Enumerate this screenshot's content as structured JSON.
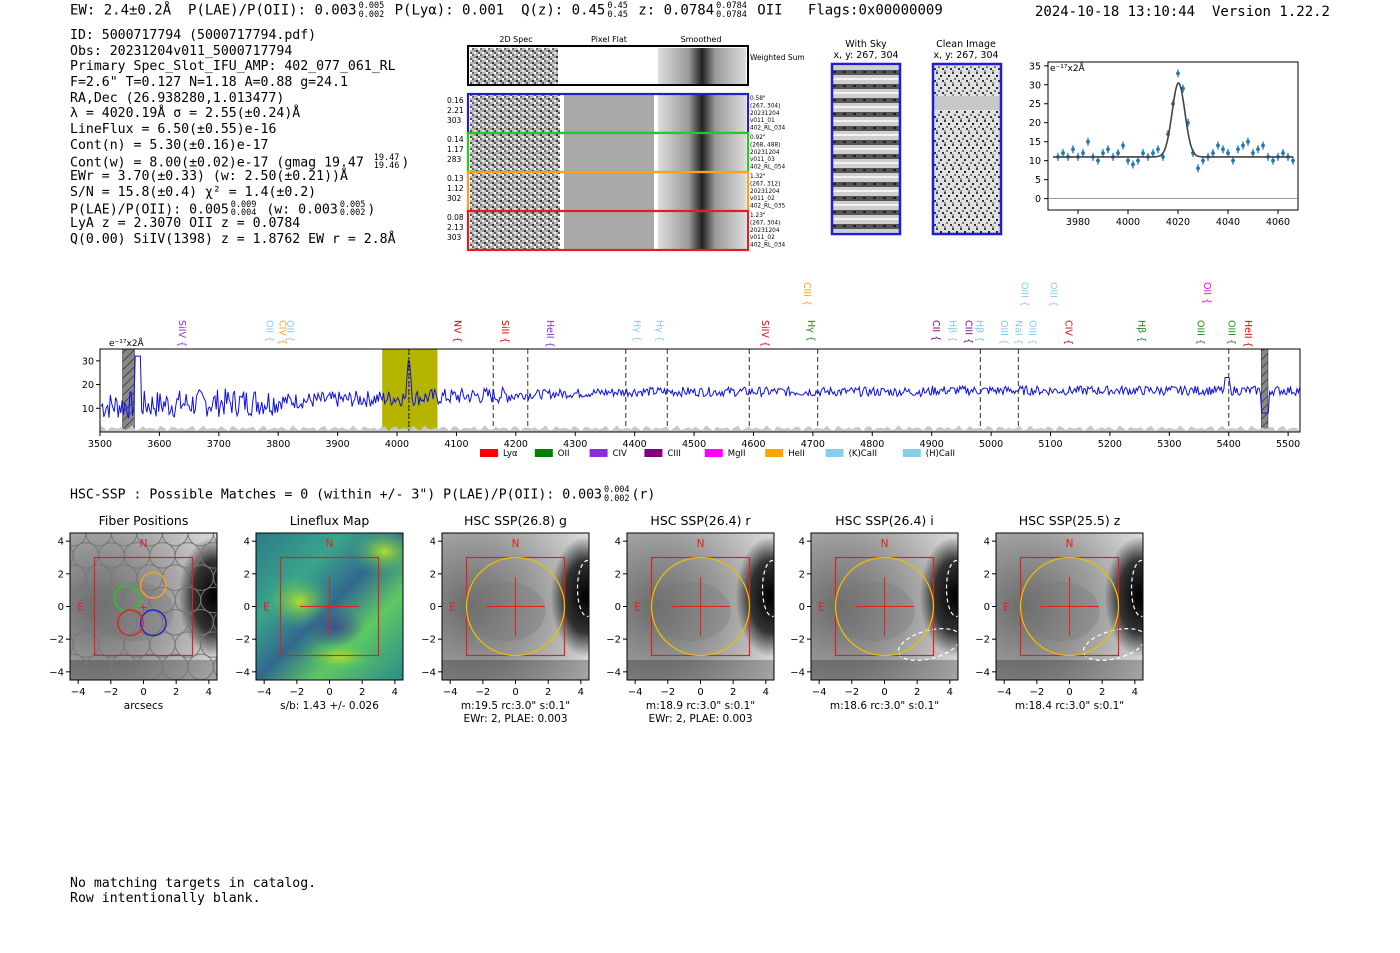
{
  "header": {
    "ew": "EW: 2.4±0.2Å",
    "plae_label": "P(LAE)/P(OII): 0.003",
    "plae_up": "0.005",
    "plae_dn": "0.002",
    "plya": "P(Lyα): 0.001",
    "qz_label": "Q(z): 0.45",
    "qz_up": "0.45",
    "qz_dn": "0.45",
    "z_label": "z: 0.0784",
    "z_up": "0.0784",
    "z_dn": "0.0784",
    "z_line": "OII",
    "flags": "Flags:0x00000009",
    "datetime": "2024-10-18 13:10:44",
    "version": "Version 1.22.2"
  },
  "info": {
    "id": "ID: 5000717794 (5000717794.pdf)",
    "obs": "Obs: 20231204v011_5000717794",
    "primary": "Primary Spec_Slot_IFU_AMP: 402_077_061_RL",
    "fiber": "F=2.6\"  T=0.127  N=1.18  A=0.88  g=24.1",
    "radec": "RA,Dec (26.938280,1.013477)",
    "lambda": "λ = 4020.19Å  σ = 2.55(±0.24)Å",
    "lineflux": "LineFlux = 6.50(±0.55)e-16",
    "contn": "Cont(n) = 5.30(±0.16)e-17",
    "contw": "Cont(w) = 8.00(±0.02)e-17 (gmag 19.47",
    "contw_up": "19.47",
    "contw_dn": "19.46",
    "contw_end": ")",
    "ewr": "EWr = 3.70(±0.33) (w: 2.50(±0.21))Å",
    "sn": "S/N = 15.8(±0.4)  χ² = 1.4(±0.2)",
    "plae": "P(LAE)/P(OII): 0.005",
    "plae_up": "0.009",
    "plae_dn": "0.004",
    "plae_w": "(w: 0.003",
    "plae_w_up": "0.005",
    "plae_w_dn": "0.002",
    "plae_end": ")",
    "lya": "LyA z = 2.3070  OII z = 0.0784",
    "q": "Q(0.00) SiIV(1398) z = 1.8762  EW r = 2.8Å"
  },
  "cutouts": {
    "col_2d": "2D Spec",
    "col_flat": "Pixel Flat",
    "col_smooth": "Smoothed",
    "weighted": "Weighted Sum",
    "rows": [
      {
        "vals": [
          "0.16",
          "2.21",
          "303"
        ],
        "meta": [
          "0.58\"",
          "(267, 304)",
          "20231204",
          "v011_01",
          "402_RL_034"
        ],
        "color": "#1f1fcf"
      },
      {
        "vals": [
          "0.14",
          "1.17",
          "283"
        ],
        "meta": [
          "0.92\"",
          "(268, 488)",
          "20231204",
          "v011_03",
          "402_RL_054"
        ],
        "color": "#22cc22"
      },
      {
        "vals": [
          "0.13",
          "1.12",
          "302"
        ],
        "meta": [
          "1.32\"",
          "(267, 312)",
          "20231204",
          "v011_02",
          "402_RL_035"
        ],
        "color": "#ff9f1a"
      },
      {
        "vals": [
          "0.08",
          "2.13",
          "303"
        ],
        "meta": [
          "1.23\"",
          "(267, 304)",
          "20231204",
          "v011_02",
          "402_RL_034"
        ],
        "color": "#e02020"
      }
    ]
  },
  "sky": {
    "withsky_title": "With Sky",
    "withsky_xy": "x, y: 267, 304",
    "clean_title": "Clean Image",
    "clean_xy": "x, y: 267, 304"
  },
  "colors": {
    "spectrum": "#1010e0",
    "fit_points": "#1f77b4",
    "box_red": "#e02020",
    "circle_yellow": "#e8c000",
    "highlight": "#b5b500"
  },
  "chart_data": [
    {
      "type": "scatter",
      "name": "line-fit",
      "unit_label": "e⁻¹⁷x2Å",
      "xlim": [
        3968,
        4068
      ],
      "ylim": [
        -3,
        36
      ],
      "xticks": [
        3980,
        4000,
        4020,
        4040,
        4060
      ],
      "yticks": [
        0,
        5,
        10,
        15,
        20,
        25,
        30,
        35
      ],
      "x": [
        3972,
        3974,
        3976,
        3978,
        3980,
        3982,
        3984,
        3986,
        3988,
        3990,
        3992,
        3994,
        3996,
        3998,
        4000,
        4002,
        4004,
        4006,
        4008,
        4010,
        4012,
        4014,
        4016,
        4018,
        4020,
        4022,
        4024,
        4026,
        4028,
        4030,
        4032,
        4034,
        4036,
        4038,
        4040,
        4042,
        4044,
        4046,
        4048,
        4050,
        4052,
        4054,
        4056,
        4058,
        4060,
        4062,
        4064,
        4066
      ],
      "y": [
        11,
        12,
        11,
        13,
        11,
        12,
        15,
        11,
        10,
        12,
        13,
        11,
        12,
        14,
        10,
        9,
        10,
        12,
        11,
        12,
        13,
        11,
        17,
        25,
        33,
        29,
        20,
        12,
        8,
        10,
        11,
        12,
        14,
        13,
        12,
        10,
        13,
        14,
        15,
        12,
        13,
        14,
        11,
        10,
        11,
        12,
        11,
        10
      ],
      "fit_baseline": 11,
      "fit_amp": 19.5,
      "fit_center": 4020.19,
      "fit_sigma": 2.55
    },
    {
      "type": "line",
      "name": "full-spectrum",
      "unit_label": "e⁻¹⁷x2Å",
      "xlim": [
        3500,
        5520
      ],
      "ylim": [
        0,
        35
      ],
      "xticks": [
        3500,
        3600,
        3700,
        3800,
        3900,
        4000,
        4100,
        4200,
        4300,
        4400,
        4500,
        4600,
        4700,
        4800,
        4900,
        5000,
        5100,
        5200,
        5300,
        5400,
        5500
      ],
      "yticks": [
        10,
        20,
        30
      ],
      "highlight_range": [
        3975,
        4068
      ],
      "masked_ranges": [
        [
          3538,
          3558
        ],
        [
          5455,
          5466
        ]
      ],
      "vlines": [
        4020,
        4162,
        4220,
        4385,
        4455,
        4593,
        4708,
        4982,
        5046,
        5400
      ],
      "lines": [
        {
          "label": "SiIV",
          "x": 3628,
          "color": "#8a2be2",
          "row": 1
        },
        {
          "label": "OII",
          "x": 3775,
          "color": "#87ceeb",
          "row": 1
        },
        {
          "label": "CIV",
          "x": 3797,
          "color": "#ff9f1a",
          "row": 1
        },
        {
          "label": "OII",
          "x": 3810,
          "color": "#87ceeb",
          "row": 1
        },
        {
          "label": "NV",
          "x": 4092,
          "color": "#e00000",
          "row": 1
        },
        {
          "label": "SiII",
          "x": 4172,
          "color": "#e00000",
          "row": 1
        },
        {
          "label": "HeII",
          "x": 4247,
          "color": "#8a2be2",
          "row": 1
        },
        {
          "label": "Hγ",
          "x": 4394,
          "color": "#87ceeb",
          "row": 1
        },
        {
          "label": "Hγ",
          "x": 4432,
          "color": "#87ceeb",
          "row": 1
        },
        {
          "label": "SiIV",
          "x": 4609,
          "color": "#e00000",
          "row": 1
        },
        {
          "label": "CIII",
          "x": 4680,
          "color": "#ff9f1a",
          "row": 0
        },
        {
          "label": "Hγ",
          "x": 4687,
          "color": "#228b22",
          "row": 1
        },
        {
          "label": "CII",
          "x": 4897,
          "color": "#800080",
          "row": 1
        },
        {
          "label": "Hβ",
          "x": 4925,
          "color": "#87ceeb",
          "row": 1
        },
        {
          "label": "CIII",
          "x": 4952,
          "color": "#800080",
          "row": 1
        },
        {
          "label": "Hβ",
          "x": 4970,
          "color": "#87ceeb",
          "row": 1
        },
        {
          "label": "OIII",
          "x": 5012,
          "color": "#87ceeb",
          "row": 1
        },
        {
          "label": "NaI",
          "x": 5036,
          "color": "#87ceeb",
          "row": 1
        },
        {
          "label": "OIII",
          "x": 5060,
          "color": "#87ceeb",
          "row": 1
        },
        {
          "label": "OIII",
          "x": 5046,
          "color": "#87ceeb",
          "row": 0
        },
        {
          "label": "OIII",
          "x": 5095,
          "color": "#87ceeb",
          "row": 0
        },
        {
          "label": "CIV",
          "x": 5120,
          "color": "#e00000",
          "row": 1
        },
        {
          "label": "Hβ",
          "x": 5243,
          "color": "#228b22",
          "row": 1
        },
        {
          "label": "OIII",
          "x": 5342,
          "color": "#228b22",
          "row": 1
        },
        {
          "label": "OII",
          "x": 5353,
          "color": "#ff00ff",
          "row": 0
        },
        {
          "label": "OIII",
          "x": 5395,
          "color": "#228b22",
          "row": 1
        },
        {
          "label": "HeII",
          "x": 5422,
          "color": "#e00000",
          "row": 1
        }
      ],
      "legend": [
        {
          "label": "Lyα",
          "color": "#ff0000"
        },
        {
          "label": "OII",
          "color": "#008000"
        },
        {
          "label": "CIV",
          "color": "#8a2be2"
        },
        {
          "label": "CIII",
          "color": "#800080"
        },
        {
          "label": "MgII",
          "color": "#ff00ff"
        },
        {
          "label": "HeII",
          "color": "#ffa500"
        },
        {
          "label": "(K)CaII",
          "color": "#87ceeb"
        },
        {
          "label": "(H)CaII",
          "color": "#87ceeb"
        }
      ]
    }
  ],
  "hsc": {
    "line": "HSC-SSP : Possible Matches = 0 (within +/- 3\")  P(LAE)/P(OII): 0.003",
    "up": "0.004",
    "dn": "0.002",
    "end": "(r)",
    "ticks": [
      "−4",
      "−2",
      "0",
      "2",
      "4"
    ],
    "north": "N",
    "east": "E",
    "panels": [
      {
        "title": "Fiber Positions",
        "caption1": "arcsecs",
        "caption2": "",
        "kind": "fiber"
      },
      {
        "title": "Lineflux Map",
        "caption1": "s/b: 1.43 +/- 0.026",
        "caption2": "",
        "kind": "flux"
      },
      {
        "title": "HSC SSP(26.8) g",
        "caption1": "m:19.5 rc:3.0\"  s:0.1\"",
        "caption2": "EWr: 2, PLAE: 0.003",
        "kind": "hsc"
      },
      {
        "title": "HSC SSP(26.4) r",
        "caption1": "m:18.9 rc:3.0\"  s:0.1\"",
        "caption2": "EWr: 2, PLAE: 0.003",
        "kind": "hsc"
      },
      {
        "title": "HSC SSP(26.4) i",
        "caption1": "m:18.6 rc:3.0\"  s:0.1\"",
        "caption2": "",
        "kind": "hsc"
      },
      {
        "title": "HSC SSP(25.5) z",
        "caption1": "m:18.4 rc:3.0\"  s:0.1\"",
        "caption2": "",
        "kind": "hsc"
      }
    ]
  },
  "footer": {
    "line1": "No matching targets in catalog.",
    "line2": "Row intentionally blank."
  }
}
